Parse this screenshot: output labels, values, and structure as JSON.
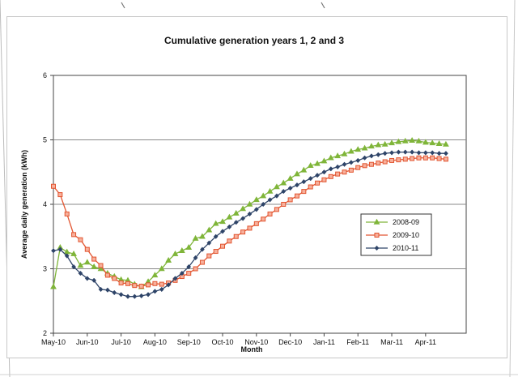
{
  "chart_data": {
    "type": "line",
    "title": "Cumulative generation years 1, 2 and 3",
    "xlabel": "Month",
    "ylabel": "Average daily generation (kWh)",
    "ylim": [
      2,
      6
    ],
    "yticks": [
      2,
      3,
      4,
      5,
      6
    ],
    "grid": true,
    "legend_position": "right",
    "categories": [
      "May-10",
      "Jun-10",
      "Jul-10",
      "Aug-10",
      "Sep-10",
      "Oct-10",
      "Nov-10",
      "Dec-10",
      "Jan-11",
      "Feb-11",
      "Mar-11",
      "Apr-11"
    ],
    "x_range": [
      0,
      12.2
    ],
    "series": [
      {
        "name": "2008-09",
        "color": "#7fb539",
        "marker": "triangle",
        "x": [
          0,
          0.2,
          0.4,
          0.6,
          0.8,
          1,
          1.2,
          1.4,
          1.6,
          1.8,
          2,
          2.2,
          2.4,
          2.6,
          2.8,
          3,
          3.2,
          3.4,
          3.6,
          3.8,
          4,
          4.2,
          4.4,
          4.6,
          4.8,
          5,
          5.2,
          5.4,
          5.6,
          5.8,
          6,
          6.2,
          6.4,
          6.6,
          6.8,
          7,
          7.2,
          7.4,
          7.6,
          7.8,
          8,
          8.2,
          8.4,
          8.6,
          8.8,
          9,
          9.2,
          9.4,
          9.6,
          9.8,
          10,
          10.2,
          10.4,
          10.6,
          10.8,
          11,
          11.2,
          11.4,
          11.6
        ],
        "values": [
          2.72,
          3.33,
          3.26,
          3.23,
          3.05,
          3.1,
          3.03,
          3.0,
          2.93,
          2.88,
          2.83,
          2.82,
          2.76,
          2.72,
          2.8,
          2.9,
          3.0,
          3.13,
          3.23,
          3.28,
          3.33,
          3.47,
          3.5,
          3.6,
          3.7,
          3.73,
          3.8,
          3.86,
          3.93,
          4.0,
          4.07,
          4.13,
          4.2,
          4.27,
          4.33,
          4.4,
          4.47,
          4.53,
          4.6,
          4.63,
          4.67,
          4.72,
          4.75,
          4.78,
          4.82,
          4.85,
          4.87,
          4.9,
          4.92,
          4.93,
          4.95,
          4.97,
          4.98,
          4.99,
          4.98,
          4.96,
          4.95,
          4.94,
          4.93
        ]
      },
      {
        "name": "2009-10",
        "color": "#e25530",
        "marker": "square",
        "x": [
          0,
          0.2,
          0.4,
          0.6,
          0.8,
          1,
          1.2,
          1.4,
          1.6,
          1.8,
          2,
          2.2,
          2.4,
          2.6,
          2.8,
          3,
          3.2,
          3.4,
          3.6,
          3.8,
          4,
          4.2,
          4.4,
          4.6,
          4.8,
          5,
          5.2,
          5.4,
          5.6,
          5.8,
          6,
          6.2,
          6.4,
          6.6,
          6.8,
          7,
          7.2,
          7.4,
          7.6,
          7.8,
          8,
          8.2,
          8.4,
          8.6,
          8.8,
          9,
          9.2,
          9.4,
          9.6,
          9.8,
          10,
          10.2,
          10.4,
          10.6,
          10.8,
          11,
          11.2,
          11.4,
          11.6
        ],
        "values": [
          4.28,
          4.15,
          3.85,
          3.53,
          3.45,
          3.3,
          3.15,
          3.05,
          2.9,
          2.85,
          2.78,
          2.77,
          2.74,
          2.73,
          2.75,
          2.77,
          2.76,
          2.78,
          2.82,
          2.88,
          2.93,
          3.0,
          3.1,
          3.2,
          3.27,
          3.35,
          3.43,
          3.5,
          3.57,
          3.63,
          3.7,
          3.77,
          3.85,
          3.92,
          4.0,
          4.07,
          4.13,
          4.2,
          4.27,
          4.33,
          4.38,
          4.43,
          4.47,
          4.5,
          4.53,
          4.57,
          4.6,
          4.62,
          4.64,
          4.66,
          4.68,
          4.69,
          4.7,
          4.71,
          4.72,
          4.72,
          4.72,
          4.71,
          4.7
        ]
      },
      {
        "name": "2010-11",
        "color": "#2e4468",
        "marker": "diamond",
        "x": [
          0,
          0.2,
          0.4,
          0.6,
          0.8,
          1,
          1.2,
          1.4,
          1.6,
          1.8,
          2,
          2.2,
          2.4,
          2.6,
          2.8,
          3,
          3.2,
          3.4,
          3.6,
          3.8,
          4,
          4.2,
          4.4,
          4.6,
          4.8,
          5,
          5.2,
          5.4,
          5.6,
          5.8,
          6,
          6.2,
          6.4,
          6.6,
          6.8,
          7,
          7.2,
          7.4,
          7.6,
          7.8,
          8,
          8.2,
          8.4,
          8.6,
          8.8,
          9,
          9.2,
          9.4,
          9.6,
          9.8,
          10,
          10.2,
          10.4,
          10.6,
          10.8,
          11,
          11.2,
          11.4,
          11.6
        ],
        "values": [
          3.28,
          3.3,
          3.2,
          3.03,
          2.93,
          2.85,
          2.82,
          2.68,
          2.67,
          2.63,
          2.6,
          2.57,
          2.57,
          2.58,
          2.6,
          2.65,
          2.68,
          2.75,
          2.85,
          2.93,
          3.03,
          3.17,
          3.3,
          3.4,
          3.5,
          3.58,
          3.65,
          3.72,
          3.78,
          3.85,
          3.92,
          4.0,
          4.07,
          4.13,
          4.2,
          4.25,
          4.3,
          4.35,
          4.4,
          4.45,
          4.5,
          4.55,
          4.58,
          4.62,
          4.65,
          4.68,
          4.72,
          4.75,
          4.77,
          4.79,
          4.8,
          4.81,
          4.81,
          4.81,
          4.8,
          4.8,
          4.8,
          4.79,
          4.79
        ]
      }
    ]
  }
}
